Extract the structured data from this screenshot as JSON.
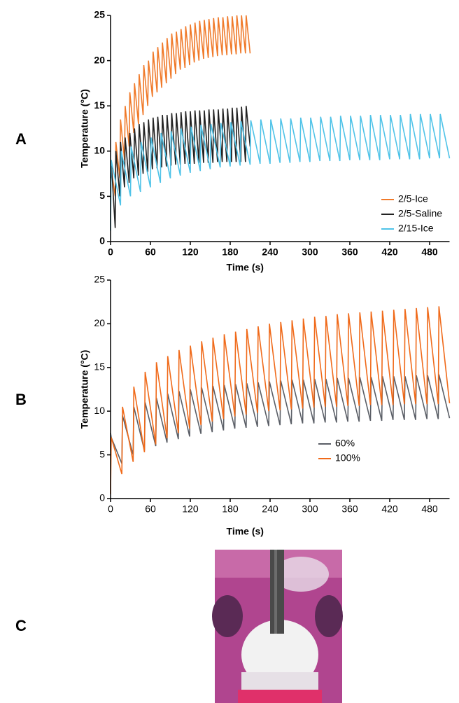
{
  "panel_labels": [
    "A",
    "B",
    "C"
  ],
  "chart_data": [
    {
      "type": "line",
      "ylabel": "Temperature (°C)",
      "xlabel": "Time (s)",
      "xlim": [
        0,
        510
      ],
      "xticks": [
        0,
        60,
        120,
        180,
        240,
        300,
        360,
        420,
        480
      ],
      "ylim": [
        0,
        25
      ],
      "yticks": [
        0,
        5,
        10,
        15,
        20,
        25
      ],
      "series": [
        {
          "name": "2/5-Ice",
          "color": "#f07a2a",
          "x": [
            0,
            1,
            7,
            8,
            14,
            15,
            21,
            22,
            28,
            29,
            35,
            36,
            42,
            43,
            49,
            50,
            56,
            57,
            63,
            64,
            70,
            71,
            77,
            78,
            84,
            85,
            91,
            92,
            98,
            99,
            105,
            106,
            112,
            113,
            119,
            120,
            126,
            127,
            133,
            134,
            140,
            141,
            147,
            148,
            154,
            155,
            161,
            162,
            168,
            169,
            175,
            176,
            182,
            183,
            189,
            190,
            196,
            197,
            203,
            204,
            210
          ],
          "values": [
            7.5,
            8,
            5,
            11,
            7,
            13.5,
            9,
            15,
            10.5,
            16.5,
            12,
            17.5,
            13,
            18.5,
            14,
            19.5,
            15,
            20,
            16,
            21,
            16.5,
            21.5,
            17,
            22,
            17.5,
            22.5,
            18,
            23,
            18.5,
            23.2,
            19,
            23.5,
            19.2,
            23.8,
            19.5,
            24,
            19.8,
            24.2,
            20,
            24.4,
            20.2,
            24.5,
            20.3,
            24.6,
            20.4,
            24.7,
            20.5,
            24.8,
            20.6,
            24.8,
            20.6,
            24.9,
            20.7,
            24.9,
            20.7,
            25,
            20.8,
            25,
            20.8,
            25,
            20.8
          ]
        },
        {
          "name": "2/5-Saline",
          "color": "#222222",
          "x": [
            0,
            1,
            7,
            8,
            14,
            15,
            21,
            22,
            28,
            29,
            35,
            36,
            42,
            43,
            49,
            50,
            56,
            57,
            63,
            64,
            70,
            71,
            77,
            78,
            84,
            85,
            91,
            92,
            98,
            99,
            105,
            106,
            112,
            113,
            119,
            120,
            126,
            127,
            133,
            134,
            140,
            141,
            147,
            148,
            154,
            155,
            161,
            162,
            168,
            169,
            175,
            176,
            182,
            183,
            189,
            190,
            196,
            197,
            203,
            204,
            210
          ],
          "values": [
            7,
            9,
            1.5,
            10,
            5,
            11,
            6,
            11.5,
            6.5,
            12,
            7,
            12.5,
            7.3,
            13,
            7.5,
            13.2,
            7.7,
            13.5,
            8,
            13.7,
            8.1,
            13.8,
            8.2,
            14,
            8.3,
            14,
            8.4,
            14.2,
            8.5,
            14.2,
            8.5,
            14.3,
            8.6,
            14.4,
            8.6,
            14.4,
            8.6,
            14.5,
            8.7,
            14.5,
            8.7,
            14.5,
            8.7,
            14.6,
            8.7,
            14.6,
            8.8,
            14.6,
            8.8,
            14.7,
            8.8,
            14.7,
            8.8,
            14.8,
            8.8,
            14.8,
            8.8,
            14.9,
            8.8,
            15,
            10.5
          ]
        },
        {
          "name": "2/15-Ice",
          "color": "#4fc3e8",
          "x": [
            0,
            1,
            15,
            16,
            30,
            31,
            45,
            46,
            60,
            61,
            75,
            76,
            90,
            91,
            105,
            106,
            120,
            121,
            135,
            136,
            150,
            151,
            165,
            166,
            180,
            181,
            195,
            196,
            210,
            211,
            225,
            226,
            240,
            241,
            255,
            256,
            270,
            271,
            285,
            286,
            300,
            301,
            315,
            316,
            330,
            331,
            345,
            346,
            360,
            361,
            375,
            376,
            390,
            391,
            405,
            406,
            420,
            421,
            435,
            436,
            450,
            451,
            465,
            466,
            480,
            481,
            495,
            496,
            510
          ],
          "values": [
            1.2,
            9,
            4,
            10,
            5,
            10.5,
            5.5,
            11,
            6,
            11.5,
            6.5,
            12,
            7,
            12.2,
            7.3,
            12.5,
            7.6,
            12.7,
            7.8,
            12.9,
            8,
            13,
            8.2,
            13.1,
            8.3,
            13.2,
            8.4,
            13.3,
            8.5,
            13.4,
            8.6,
            13.5,
            8.6,
            13.5,
            8.7,
            13.6,
            8.7,
            13.6,
            8.8,
            13.7,
            8.8,
            13.7,
            8.9,
            13.8,
            8.9,
            13.8,
            8.9,
            13.9,
            9,
            13.9,
            9,
            13.9,
            9,
            14,
            9,
            14,
            9.1,
            14,
            9.1,
            14,
            9.1,
            14.1,
            9.1,
            14.1,
            9.2,
            14.1,
            9.2,
            14.1,
            9.2
          ]
        }
      ]
    },
    {
      "type": "line",
      "ylabel": "Temperature (°C)",
      "xlabel": "Time (s)",
      "xlim": [
        0,
        510
      ],
      "xticks": [
        0,
        60,
        120,
        180,
        240,
        300,
        360,
        420,
        480
      ],
      "ylim": [
        0,
        25
      ],
      "yticks": [
        0,
        5,
        10,
        15,
        20,
        25
      ],
      "series": [
        {
          "name": "60%",
          "color": "#5a5e66",
          "x": [
            0,
            1,
            17,
            18,
            34,
            35,
            51,
            52,
            68,
            69,
            85,
            86,
            102,
            103,
            119,
            120,
            136,
            137,
            153,
            154,
            170,
            171,
            187,
            188,
            204,
            205,
            221,
            222,
            238,
            239,
            255,
            256,
            272,
            273,
            289,
            290,
            306,
            307,
            323,
            324,
            340,
            341,
            357,
            358,
            374,
            375,
            391,
            392,
            408,
            409,
            425,
            426,
            442,
            443,
            459,
            460,
            476,
            477,
            493,
            494,
            510
          ],
          "values": [
            7.5,
            7,
            4,
            9.5,
            5,
            10.5,
            5.5,
            11,
            6,
            11.5,
            6.4,
            12,
            6.8,
            12.3,
            7.1,
            12.5,
            7.4,
            12.7,
            7.6,
            12.9,
            7.8,
            13,
            8,
            13.1,
            8.1,
            13.2,
            8.2,
            13.3,
            8.3,
            13.4,
            8.4,
            13.5,
            8.5,
            13.6,
            8.6,
            13.6,
            8.6,
            13.7,
            8.7,
            13.7,
            8.7,
            13.8,
            8.8,
            13.8,
            8.8,
            13.9,
            8.9,
            13.9,
            8.9,
            14,
            9,
            14,
            9,
            14,
            9,
            14.1,
            9.1,
            14.1,
            9.1,
            14.2,
            9.2
          ]
        },
        {
          "name": "100%",
          "color": "#f06a1a",
          "x": [
            0,
            1,
            17,
            18,
            34,
            35,
            51,
            52,
            68,
            69,
            85,
            86,
            102,
            103,
            119,
            120,
            136,
            137,
            153,
            154,
            170,
            171,
            187,
            188,
            204,
            205,
            221,
            222,
            238,
            239,
            255,
            256,
            272,
            273,
            289,
            290,
            306,
            307,
            323,
            324,
            340,
            341,
            357,
            358,
            374,
            375,
            391,
            392,
            408,
            409,
            425,
            426,
            442,
            443,
            459,
            460,
            476,
            477,
            493,
            494,
            510
          ],
          "values": [
            0.5,
            7,
            2.8,
            10.5,
            4.2,
            12.8,
            5.3,
            14.5,
            6.2,
            15.6,
            6.9,
            16.3,
            7.5,
            17,
            8,
            17.5,
            8.4,
            18,
            8.8,
            18.4,
            9.1,
            18.8,
            9.4,
            19.1,
            9.6,
            19.4,
            9.8,
            19.7,
            10,
            20,
            10.1,
            20.2,
            10.2,
            20.4,
            10.3,
            20.6,
            10.4,
            20.8,
            10.5,
            20.9,
            10.5,
            21.1,
            10.6,
            21.2,
            10.6,
            21.3,
            10.7,
            21.4,
            10.7,
            21.5,
            10.7,
            21.6,
            10.8,
            21.7,
            10.8,
            21.8,
            10.8,
            21.9,
            10.8,
            22,
            10.9
          ]
        }
      ]
    }
  ]
}
